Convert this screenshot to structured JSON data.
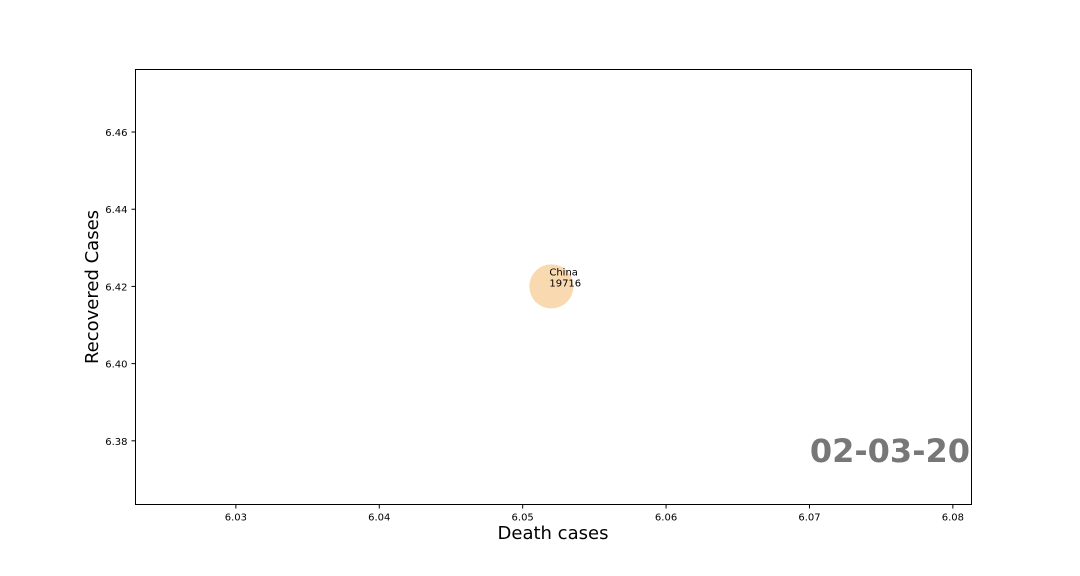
{
  "chart_data": {
    "type": "scatter",
    "title": "",
    "xlabel": "Death cases",
    "ylabel": "Recovered Cases",
    "xlim": [
      6.023,
      6.0813
    ],
    "ylim": [
      6.3635,
      6.4762
    ],
    "xticks": [
      6.03,
      6.04,
      6.05,
      6.06,
      6.07,
      6.08
    ],
    "yticks": [
      6.38,
      6.4,
      6.42,
      6.44,
      6.46
    ],
    "xtick_labels": [
      "6.03",
      "6.04",
      "6.05",
      "6.06",
      "6.07",
      "6.08"
    ],
    "ytick_labels": [
      "6.38",
      "6.40",
      "6.42",
      "6.44",
      "6.46"
    ],
    "grid": false,
    "points": [
      {
        "name": "China",
        "label": "China",
        "value_label": "19716",
        "x": 6.052,
        "y": 6.42,
        "size": 19716,
        "color": "#f5c07a"
      }
    ],
    "date_stamp": "02-03-20",
    "date_color": "#777777"
  }
}
